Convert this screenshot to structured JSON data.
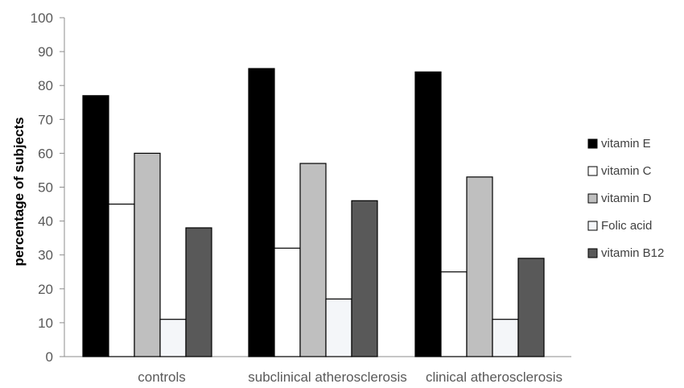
{
  "chart_data": {
    "type": "bar",
    "title": "",
    "xlabel": "",
    "ylabel": "percentage of subjects",
    "ylim": [
      0,
      100
    ],
    "yticks": [
      0,
      10,
      20,
      30,
      40,
      50,
      60,
      70,
      80,
      90,
      100
    ],
    "grid": false,
    "legend_position": "right",
    "categories": [
      "controls",
      "subclinical atherosclerosis",
      "clinical atherosclerosis"
    ],
    "series": [
      {
        "name": "vitamin E",
        "values": [
          77,
          85,
          84
        ],
        "color": "#000000"
      },
      {
        "name": "vitamin C",
        "values": [
          45,
          32,
          25
        ],
        "color": "#ffffff"
      },
      {
        "name": "vitamin D",
        "values": [
          60,
          57,
          53
        ],
        "color": "#bfbfbf"
      },
      {
        "name": "Folic acid",
        "values": [
          11,
          17,
          11
        ],
        "color": "#f4f6f9"
      },
      {
        "name": "vitamin B12",
        "values": [
          38,
          46,
          29
        ],
        "color": "#595959"
      }
    ]
  }
}
